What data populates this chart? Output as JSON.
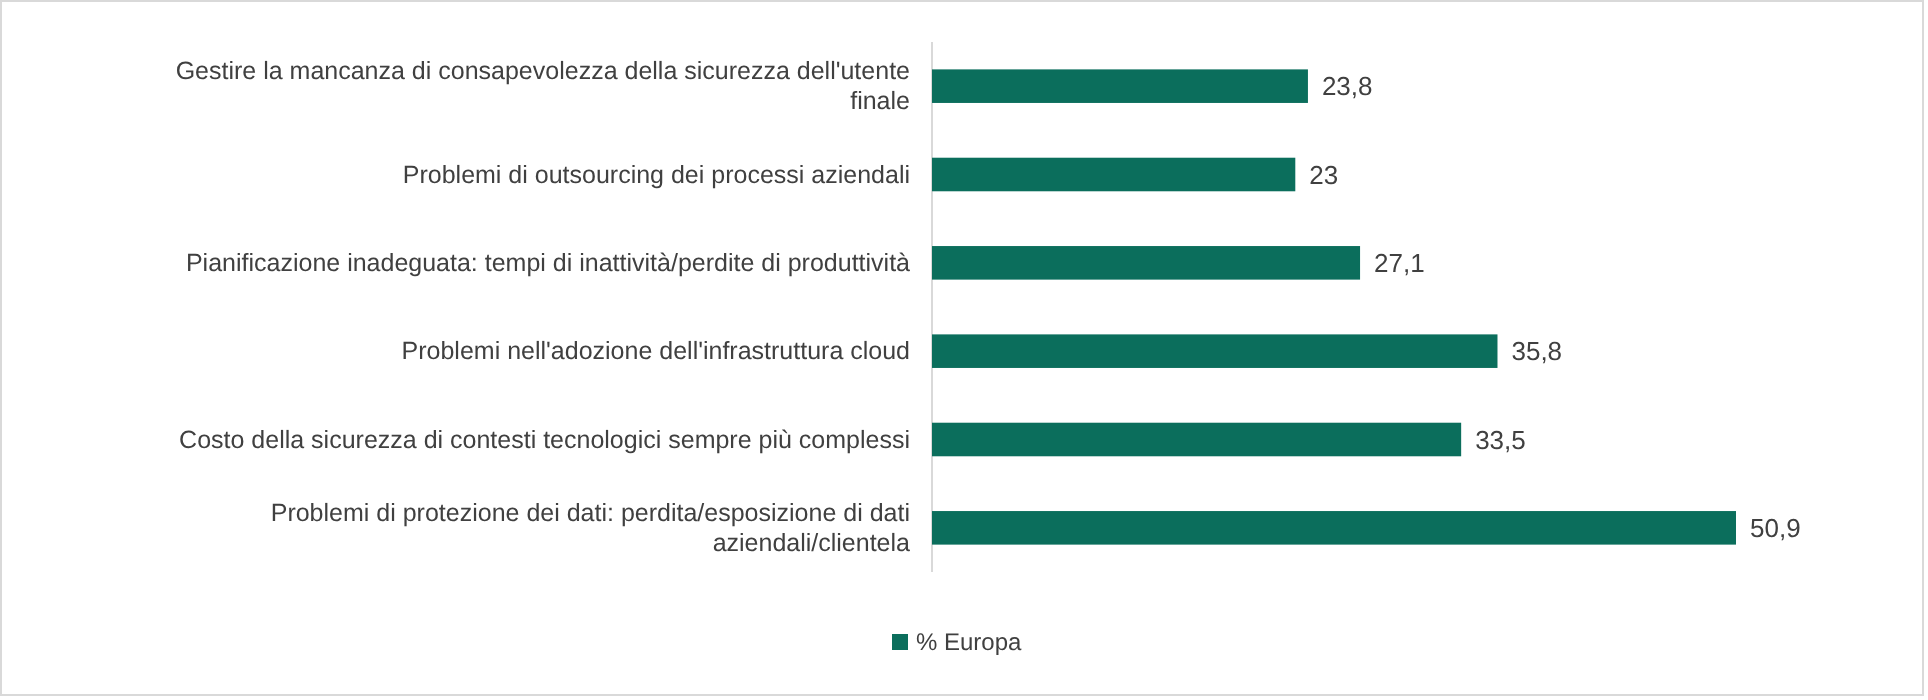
{
  "chart_data": {
    "type": "bar",
    "orientation": "horizontal",
    "categories": [
      "Gestire la mancanza di consapevolezza della sicurezza dell'utente finale",
      "Problemi di outsourcing dei processi aziendali",
      "Pianificazione inadeguata: tempi di inattività/perdite di produttività",
      "Problemi nell'adozione dell'infrastruttura cloud",
      "Costo della sicurezza di contesti tecnologici sempre più complessi",
      "Problemi di protezione dei dati: perdita/esposizione di dati aziendali/clientela"
    ],
    "series": [
      {
        "name": "% Europa",
        "color": "#0b6e5c",
        "values": [
          23.8,
          23,
          27.1,
          35.8,
          33.5,
          50.9
        ],
        "value_labels": [
          "23,8",
          "23",
          "27,1",
          "35,8",
          "33,5",
          "50,9"
        ]
      }
    ],
    "legend": "bottom"
  }
}
